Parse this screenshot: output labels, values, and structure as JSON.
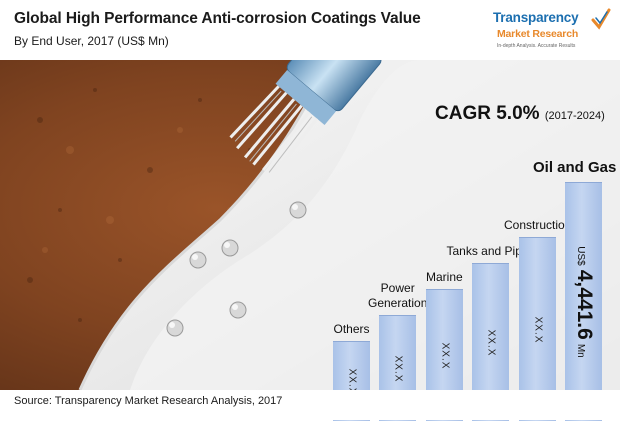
{
  "header": {
    "title": "Global High Performance Anti-corrosion Coatings Value",
    "subtitle": "By End User, 2017 (US$ Mn)"
  },
  "logo": {
    "name": "Transparency",
    "subname": "Market Research",
    "tagline": "In-depth Analysis. Accurate Results"
  },
  "cagr": {
    "label": "CAGR 5.0%",
    "period": "(2017-2024)"
  },
  "footer": {
    "source": "Source: Transparency Market Research Analysis, 2017"
  },
  "colors": {
    "bar": "#b7cbec",
    "bar_edge": "#8ea9d6",
    "logo_blue": "#1c6fb0",
    "logo_orange": "#e8892c",
    "rust": "#8a4a22"
  },
  "chart_data": {
    "type": "bar",
    "title": "Global High Performance Anti-corrosion Coatings Value",
    "subtitle": "By End User, 2017 (US$ Mn)",
    "categories": [
      "Others",
      "Power Generation",
      "Marine",
      "Tanks and Pipes",
      "Construction",
      "Oil and Gas"
    ],
    "display_labels": [
      "XX.X",
      "XX.X",
      "XX.X",
      "XX.X",
      "XX.X",
      "4,441.6"
    ],
    "relative_heights": [
      0.33,
      0.44,
      0.55,
      0.66,
      0.77,
      1.0
    ],
    "highlight": {
      "category": "Oil and Gas",
      "value": "4,441.6",
      "unit_prefix": "US$",
      "unit_suffix": "Mn"
    },
    "xlabel": "",
    "ylabel": "",
    "grid": false,
    "legend": "none"
  }
}
